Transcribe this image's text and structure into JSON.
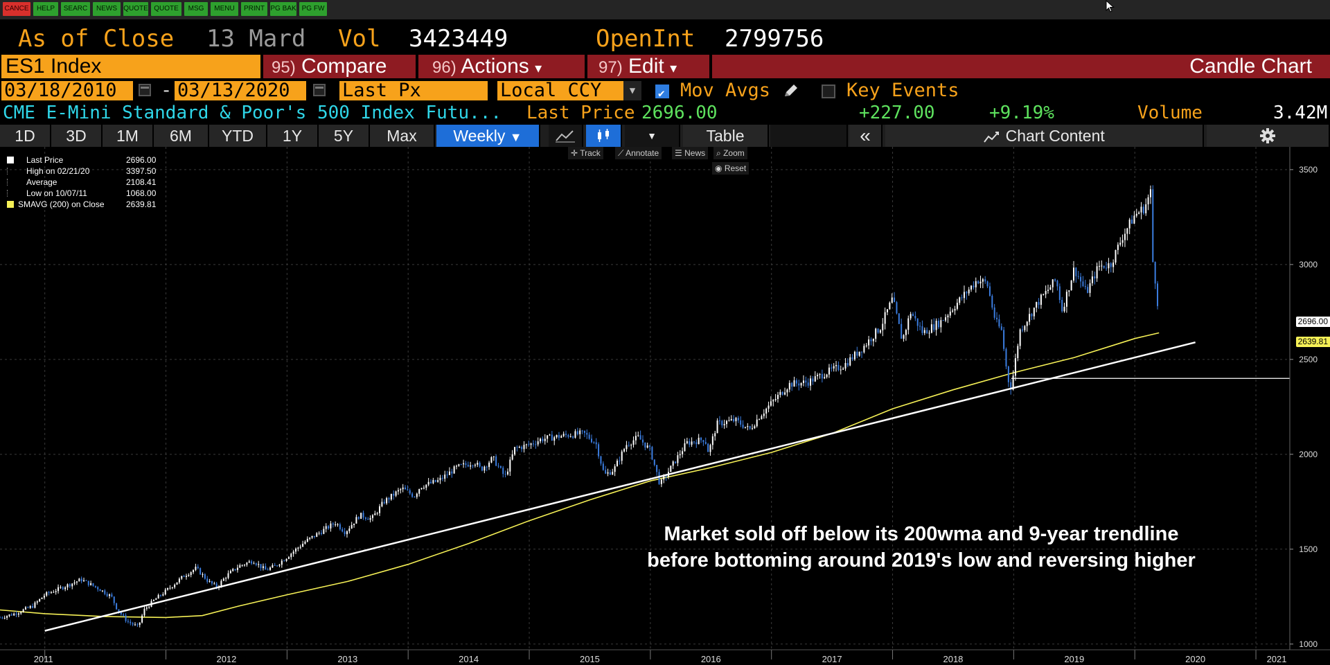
{
  "toolbar": {
    "keys": [
      {
        "label": "CANCE",
        "color": "red"
      },
      {
        "label": "HELP",
        "color": "green"
      },
      {
        "label": "SEARC",
        "color": "green"
      },
      {
        "label": "NEWS",
        "color": "green"
      },
      {
        "label": "QUOTE",
        "color": "green"
      },
      {
        "label": "QUOTE",
        "color": "green"
      },
      {
        "label": "MSG",
        "color": "green"
      },
      {
        "label": "MENU",
        "color": "green"
      },
      {
        "label": "PRINT",
        "color": "green"
      },
      {
        "label": "PG BAK",
        "color": "green"
      },
      {
        "label": "PG FW",
        "color": "green"
      }
    ]
  },
  "header": {
    "as_of_label": "As of Close",
    "as_of_date": "13 Mard",
    "vol_label": "Vol",
    "vol_value": "3423449",
    "openint_label": "OpenInt",
    "openint_value": "2799756"
  },
  "security": {
    "ticker": "ES1 Index",
    "menus": [
      {
        "num": "95)",
        "label": "Compare",
        "arrow": ""
      },
      {
        "num": "96)",
        "label": "Actions",
        "arrow": "▾"
      },
      {
        "num": "97)",
        "label": "Edit",
        "arrow": "▾"
      }
    ],
    "chart_type": "Candle Chart"
  },
  "controls": {
    "start_date": "03/18/2010",
    "dash": "-",
    "end_date": "03/13/2020",
    "field": "Last Px",
    "currency": "Local CCY",
    "mov_avgs_label": "Mov Avgs",
    "mov_avgs_checked": true,
    "key_events_label": "Key Events",
    "key_events_checked": false
  },
  "description": {
    "name": "CME E-Mini Standard & Poor's 500 Index Futu...",
    "last_price_label": "Last Price",
    "last_price_value": "2696.00",
    "change": "+227.00",
    "change_pct": "+9.19%",
    "volume_label": "Volume",
    "volume_value": "3.42M"
  },
  "periods": {
    "buttons": [
      "1D",
      "3D",
      "1M",
      "6M",
      "YTD",
      "1Y",
      "5Y",
      "Max"
    ],
    "frequency": "Weekly",
    "table_label": "Table",
    "collapse_label": "«",
    "chart_content_label": "Chart Content"
  },
  "chart_tools": {
    "track": "Track",
    "annotate": "Annotate",
    "news": "News",
    "zoom": "Zoom",
    "reset": "Reset"
  },
  "legend": [
    {
      "label": "Last Price",
      "value": "2696.00",
      "color": "#ffffff"
    },
    {
      "label": "High on 02/21/20",
      "value": "3397.50",
      "color": "#888888"
    },
    {
      "label": "Average",
      "value": "2108.41",
      "color": "#888888"
    },
    {
      "label": "Low on 10/07/11",
      "value": "1068.00",
      "color": "#888888"
    },
    {
      "label": "SMAVG (200)  on Close",
      "value": "2639.81",
      "color": "#f5f056"
    }
  ],
  "price_tags": [
    {
      "value": "2696.00",
      "price": 2696,
      "bg": "#ffffff"
    },
    {
      "value": "2639.81",
      "price": 2639.81,
      "bg": "#f5f056"
    }
  ],
  "annotation": {
    "line1": "Market sold off below its 200wma and 9-year trendline",
    "line2": "before bottoming around 2019's low and reversing higher"
  },
  "colors": {
    "orange": "#f7a21b",
    "menu_red": "#8e1b22",
    "active_blue": "#1e6ed8",
    "candle_up": "#ffffff",
    "candle_down": "#3b7de0",
    "sma": "#f5f056"
  },
  "chart_data": {
    "type": "candlestick",
    "frequency": "Weekly",
    "x_ticks": [
      "2011",
      "2012",
      "2013",
      "2014",
      "2015",
      "2016",
      "2017",
      "2018",
      "2019",
      "2020",
      "2021"
    ],
    "y_ticks": [
      1000,
      1500,
      2000,
      2500,
      3000,
      3500
    ],
    "y_range": [
      970,
      3620
    ],
    "x_range": [
      2010.63,
      2021.28
    ],
    "price_path": [
      [
        2010.63,
        1140
      ],
      [
        2010.75,
        1160
      ],
      [
        2010.9,
        1200
      ],
      [
        2011.0,
        1260
      ],
      [
        2011.15,
        1300
      ],
      [
        2011.3,
        1340
      ],
      [
        2011.45,
        1290
      ],
      [
        2011.55,
        1250
      ],
      [
        2011.6,
        1180
      ],
      [
        2011.68,
        1120
      ],
      [
        2011.77,
        1090
      ],
      [
        2011.82,
        1180
      ],
      [
        2011.9,
        1230
      ],
      [
        2012.0,
        1280
      ],
      [
        2012.15,
        1360
      ],
      [
        2012.25,
        1400
      ],
      [
        2012.35,
        1330
      ],
      [
        2012.42,
        1300
      ],
      [
        2012.5,
        1360
      ],
      [
        2012.6,
        1410
      ],
      [
        2012.72,
        1440
      ],
      [
        2012.82,
        1390
      ],
      [
        2012.9,
        1410
      ],
      [
        2013.0,
        1460
      ],
      [
        2013.15,
        1540
      ],
      [
        2013.3,
        1600
      ],
      [
        2013.4,
        1640
      ],
      [
        2013.48,
        1590
      ],
      [
        2013.6,
        1680
      ],
      [
        2013.7,
        1660
      ],
      [
        2013.8,
        1750
      ],
      [
        2013.95,
        1820
      ],
      [
        2014.05,
        1780
      ],
      [
        2014.1,
        1830
      ],
      [
        2014.25,
        1860
      ],
      [
        2014.4,
        1930
      ],
      [
        2014.55,
        1960
      ],
      [
        2014.6,
        1920
      ],
      [
        2014.7,
        1980
      ],
      [
        2014.8,
        1880
      ],
      [
        2014.88,
        2030
      ],
      [
        2015.0,
        2050
      ],
      [
        2015.1,
        2080
      ],
      [
        2015.3,
        2100
      ],
      [
        2015.45,
        2110
      ],
      [
        2015.55,
        2060
      ],
      [
        2015.62,
        1890
      ],
      [
        2015.7,
        1920
      ],
      [
        2015.8,
        2050
      ],
      [
        2015.9,
        2090
      ],
      [
        2016.0,
        2020
      ],
      [
        2016.08,
        1840
      ],
      [
        2016.15,
        1910
      ],
      [
        2016.3,
        2060
      ],
      [
        2016.45,
        2080
      ],
      [
        2016.48,
        2010
      ],
      [
        2016.55,
        2160
      ],
      [
        2016.7,
        2180
      ],
      [
        2016.82,
        2130
      ],
      [
        2016.9,
        2200
      ],
      [
        2017.0,
        2270
      ],
      [
        2017.15,
        2370
      ],
      [
        2017.3,
        2380
      ],
      [
        2017.45,
        2430
      ],
      [
        2017.6,
        2470
      ],
      [
        2017.75,
        2560
      ],
      [
        2017.9,
        2670
      ],
      [
        2018.0,
        2820
      ],
      [
        2018.08,
        2600
      ],
      [
        2018.15,
        2750
      ],
      [
        2018.25,
        2640
      ],
      [
        2018.4,
        2700
      ],
      [
        2018.55,
        2810
      ],
      [
        2018.7,
        2920
      ],
      [
        2018.78,
        2900
      ],
      [
        2018.85,
        2700
      ],
      [
        2018.9,
        2650
      ],
      [
        2018.95,
        2400
      ],
      [
        2018.98,
        2350
      ],
      [
        2019.05,
        2650
      ],
      [
        2019.2,
        2800
      ],
      [
        2019.35,
        2920
      ],
      [
        2019.4,
        2760
      ],
      [
        2019.5,
        2980
      ],
      [
        2019.6,
        2850
      ],
      [
        2019.7,
        2990
      ],
      [
        2019.8,
        3000
      ],
      [
        2019.9,
        3150
      ],
      [
        2020.0,
        3260
      ],
      [
        2020.08,
        3300
      ],
      [
        2020.13,
        3380
      ],
      [
        2020.15,
        3000
      ],
      [
        2020.18,
        2870
      ],
      [
        2020.2,
        2696
      ]
    ],
    "sma_path": [
      [
        2010.63,
        1180
      ],
      [
        2011.0,
        1160
      ],
      [
        2011.5,
        1145
      ],
      [
        2012.0,
        1140
      ],
      [
        2012.3,
        1150
      ],
      [
        2012.6,
        1200
      ],
      [
        2013.0,
        1260
      ],
      [
        2013.5,
        1330
      ],
      [
        2014.0,
        1420
      ],
      [
        2014.5,
        1530
      ],
      [
        2015.0,
        1650
      ],
      [
        2015.5,
        1760
      ],
      [
        2016.0,
        1860
      ],
      [
        2016.5,
        1930
      ],
      [
        2017.0,
        2010
      ],
      [
        2017.5,
        2110
      ],
      [
        2018.0,
        2240
      ],
      [
        2018.5,
        2340
      ],
      [
        2019.0,
        2430
      ],
      [
        2019.5,
        2510
      ],
      [
        2019.8,
        2570
      ],
      [
        2020.0,
        2610
      ],
      [
        2020.2,
        2639.81
      ]
    ],
    "trendline": [
      [
        2011.0,
        1070
      ],
      [
        2020.5,
        2590
      ]
    ],
    "support_line": {
      "price": 2400,
      "x_start": 2018.98,
      "x_end": 2021.28
    },
    "series": [
      {
        "name": "Last Price",
        "values_path": "price_path"
      },
      {
        "name": "SMAVG (200)  on Close",
        "values_path": "sma_path"
      }
    ]
  }
}
